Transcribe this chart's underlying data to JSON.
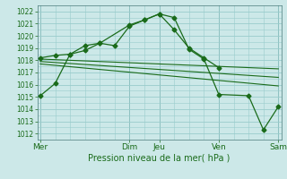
{
  "xlabel": "Pression niveau de la mer( hPa )",
  "bg_color": "#cce8e8",
  "grid_color": "#99cccc",
  "line_color": "#1a6b1a",
  "ylim": [
    1011.5,
    1022.5
  ],
  "yticks": [
    1012,
    1013,
    1014,
    1015,
    1016,
    1017,
    1018,
    1019,
    1020,
    1021,
    1022
  ],
  "ytick_fontsize": 5.5,
  "xlabel_fontsize": 7,
  "xtick_fontsize": 6.5,
  "xlim": [
    -0.1,
    8.1
  ],
  "xtick_positions": [
    0,
    3,
    4,
    6,
    8
  ],
  "xtick_labels": [
    "Mer",
    "Dim",
    "Jeu",
    "Ven",
    "Sam"
  ],
  "vlines": [
    0,
    3,
    4,
    6,
    8
  ],
  "lines": [
    {
      "x": [
        0,
        0.5,
        1.0,
        1.5,
        2.0,
        2.5,
        3.0,
        3.5,
        4.0,
        4.5,
        5.0,
        5.5,
        6.0
      ],
      "y": [
        1015.1,
        1016.1,
        1018.5,
        1019.2,
        1019.4,
        1019.2,
        1020.8,
        1021.3,
        1021.8,
        1020.5,
        1019.0,
        1018.2,
        1017.4
      ],
      "marker": true
    },
    {
      "x": [
        0,
        0.5,
        1.0,
        1.5,
        2.0,
        3.0,
        3.5,
        4.0,
        4.5,
        5.0,
        5.5,
        6.0,
        7.0,
        7.5,
        8.0
      ],
      "y": [
        1018.2,
        1018.4,
        1018.5,
        1018.8,
        1019.4,
        1020.9,
        1021.3,
        1021.8,
        1021.5,
        1018.9,
        1018.1,
        1015.2,
        1015.1,
        1012.3,
        1014.2
      ],
      "marker": true
    },
    {
      "x": [
        0,
        8.0
      ],
      "y": [
        1018.1,
        1017.3
      ],
      "marker": false
    },
    {
      "x": [
        0,
        8.0
      ],
      "y": [
        1017.9,
        1016.6
      ],
      "marker": false
    },
    {
      "x": [
        0,
        8.0
      ],
      "y": [
        1017.7,
        1015.9
      ],
      "marker": false
    }
  ]
}
